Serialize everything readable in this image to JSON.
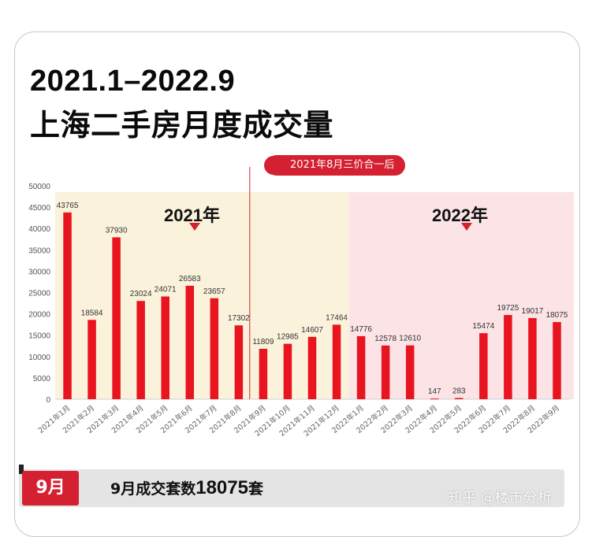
{
  "header": {
    "title_line1": "2021.1–2022.9",
    "title_line2": "上海二手房月度成交量"
  },
  "annotation": {
    "callout": "2021年8月三价合一后"
  },
  "year_labels": [
    "2021年",
    "2022年"
  ],
  "footer": {
    "month_tag": "9月",
    "summary_prefix": "9月成交套数",
    "summary_value": "18075",
    "summary_suffix": "套"
  },
  "watermark": "知乎 @楼市分析",
  "colors": {
    "bar": "#e8141f",
    "accent": "#d42030",
    "band_2021": "#fbf2dc",
    "band_2022": "#fbe3e6"
  },
  "chart_data": {
    "type": "bar",
    "title": "上海二手房月度成交量",
    "categories": [
      "2021年1月",
      "2021年2月",
      "2021年3月",
      "2021年4月",
      "2021年5月",
      "2021年6月",
      "2021年7月",
      "2021年8月",
      "2021年9月",
      "2021年10月",
      "2021年11月",
      "2021年12月",
      "2022年1月",
      "2022年2月",
      "2022年3月",
      "2022年4月",
      "2022年5月",
      "2022年6月",
      "2022年7月",
      "2022年8月",
      "2022年9月"
    ],
    "values": [
      43765,
      18584,
      37930,
      23024,
      24071,
      26583,
      23657,
      17302,
      11809,
      12985,
      14607,
      17464,
      14776,
      12578,
      12610,
      147,
      283,
      15474,
      19725,
      19017,
      18075
    ],
    "value_labels": [
      "43765",
      "18584",
      "37930",
      "23024",
      "24071",
      "26583",
      "23657",
      "17302",
      "11809",
      "12985",
      "14607",
      "17464",
      "14776",
      "12578",
      "12610",
      "147",
      "283",
      "15474",
      "19725",
      "19017",
      "18075"
    ],
    "y_ticks": [
      "0",
      "5000",
      "10000",
      "15000",
      "20000",
      "25000",
      "30000",
      "35000",
      "40000",
      "45000",
      "50000"
    ],
    "ylim": [
      0,
      50000
    ],
    "xlabel": "",
    "ylabel": "",
    "grid": false,
    "legend": "none"
  }
}
